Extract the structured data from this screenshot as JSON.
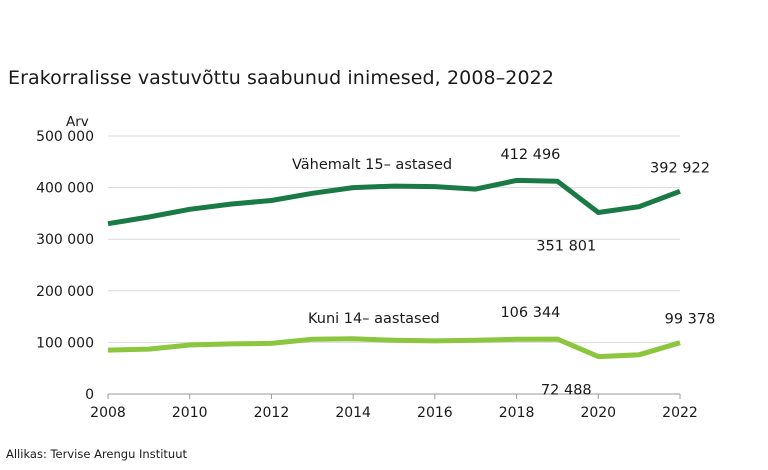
{
  "title": "Erakorralisse vastuvõttu saabunud inimesed, 2008–2022",
  "source": "Allikas: Tervise Arengu Instituut",
  "chart_data": {
    "type": "line",
    "title": "Erakorralisse vastuvõttu saabunud inimesed, 2008–2022",
    "ylabel": "Arv",
    "xlabel": "",
    "x": [
      2008,
      2009,
      2010,
      2011,
      2012,
      2013,
      2014,
      2015,
      2016,
      2017,
      2018,
      2019,
      2020,
      2021,
      2022
    ],
    "ylim": [
      0,
      500000
    ],
    "yticks": [
      0,
      100000,
      200000,
      300000,
      400000,
      500000
    ],
    "ytick_labels": [
      "0",
      "100 000",
      "200 000",
      "300 000",
      "400 000",
      "500 000"
    ],
    "xticks": [
      2008,
      2010,
      2012,
      2014,
      2016,
      2018,
      2020,
      2022
    ],
    "xtick_labels": [
      "2008",
      "2010",
      "2012",
      "2014",
      "2016",
      "2018",
      "2020",
      "2022"
    ],
    "grid": "horizontal",
    "legend": "inline labels",
    "series": [
      {
        "name": "Vähemalt 15– astased",
        "color": "#1a7a45",
        "values": [
          330000,
          343000,
          358000,
          368000,
          375000,
          389000,
          400000,
          403000,
          402000,
          397000,
          414000,
          412496,
          351801,
          363000,
          392922
        ],
        "annotations": [
          {
            "x": 2019,
            "label": "412 496"
          },
          {
            "x": 2020,
            "label": "351 801"
          },
          {
            "x": 2022,
            "label": "392 922"
          }
        ]
      },
      {
        "name": "Kuni 14– aastased",
        "color": "#8cc63f",
        "values": [
          85000,
          87000,
          95000,
          97000,
          98000,
          106000,
          107000,
          104000,
          103000,
          104000,
          106000,
          106344,
          72488,
          76000,
          99378
        ],
        "annotations": [
          {
            "x": 2019,
            "label": "106 344"
          },
          {
            "x": 2020,
            "label": "72 488"
          },
          {
            "x": 2022,
            "label": "99 378"
          }
        ]
      }
    ]
  }
}
